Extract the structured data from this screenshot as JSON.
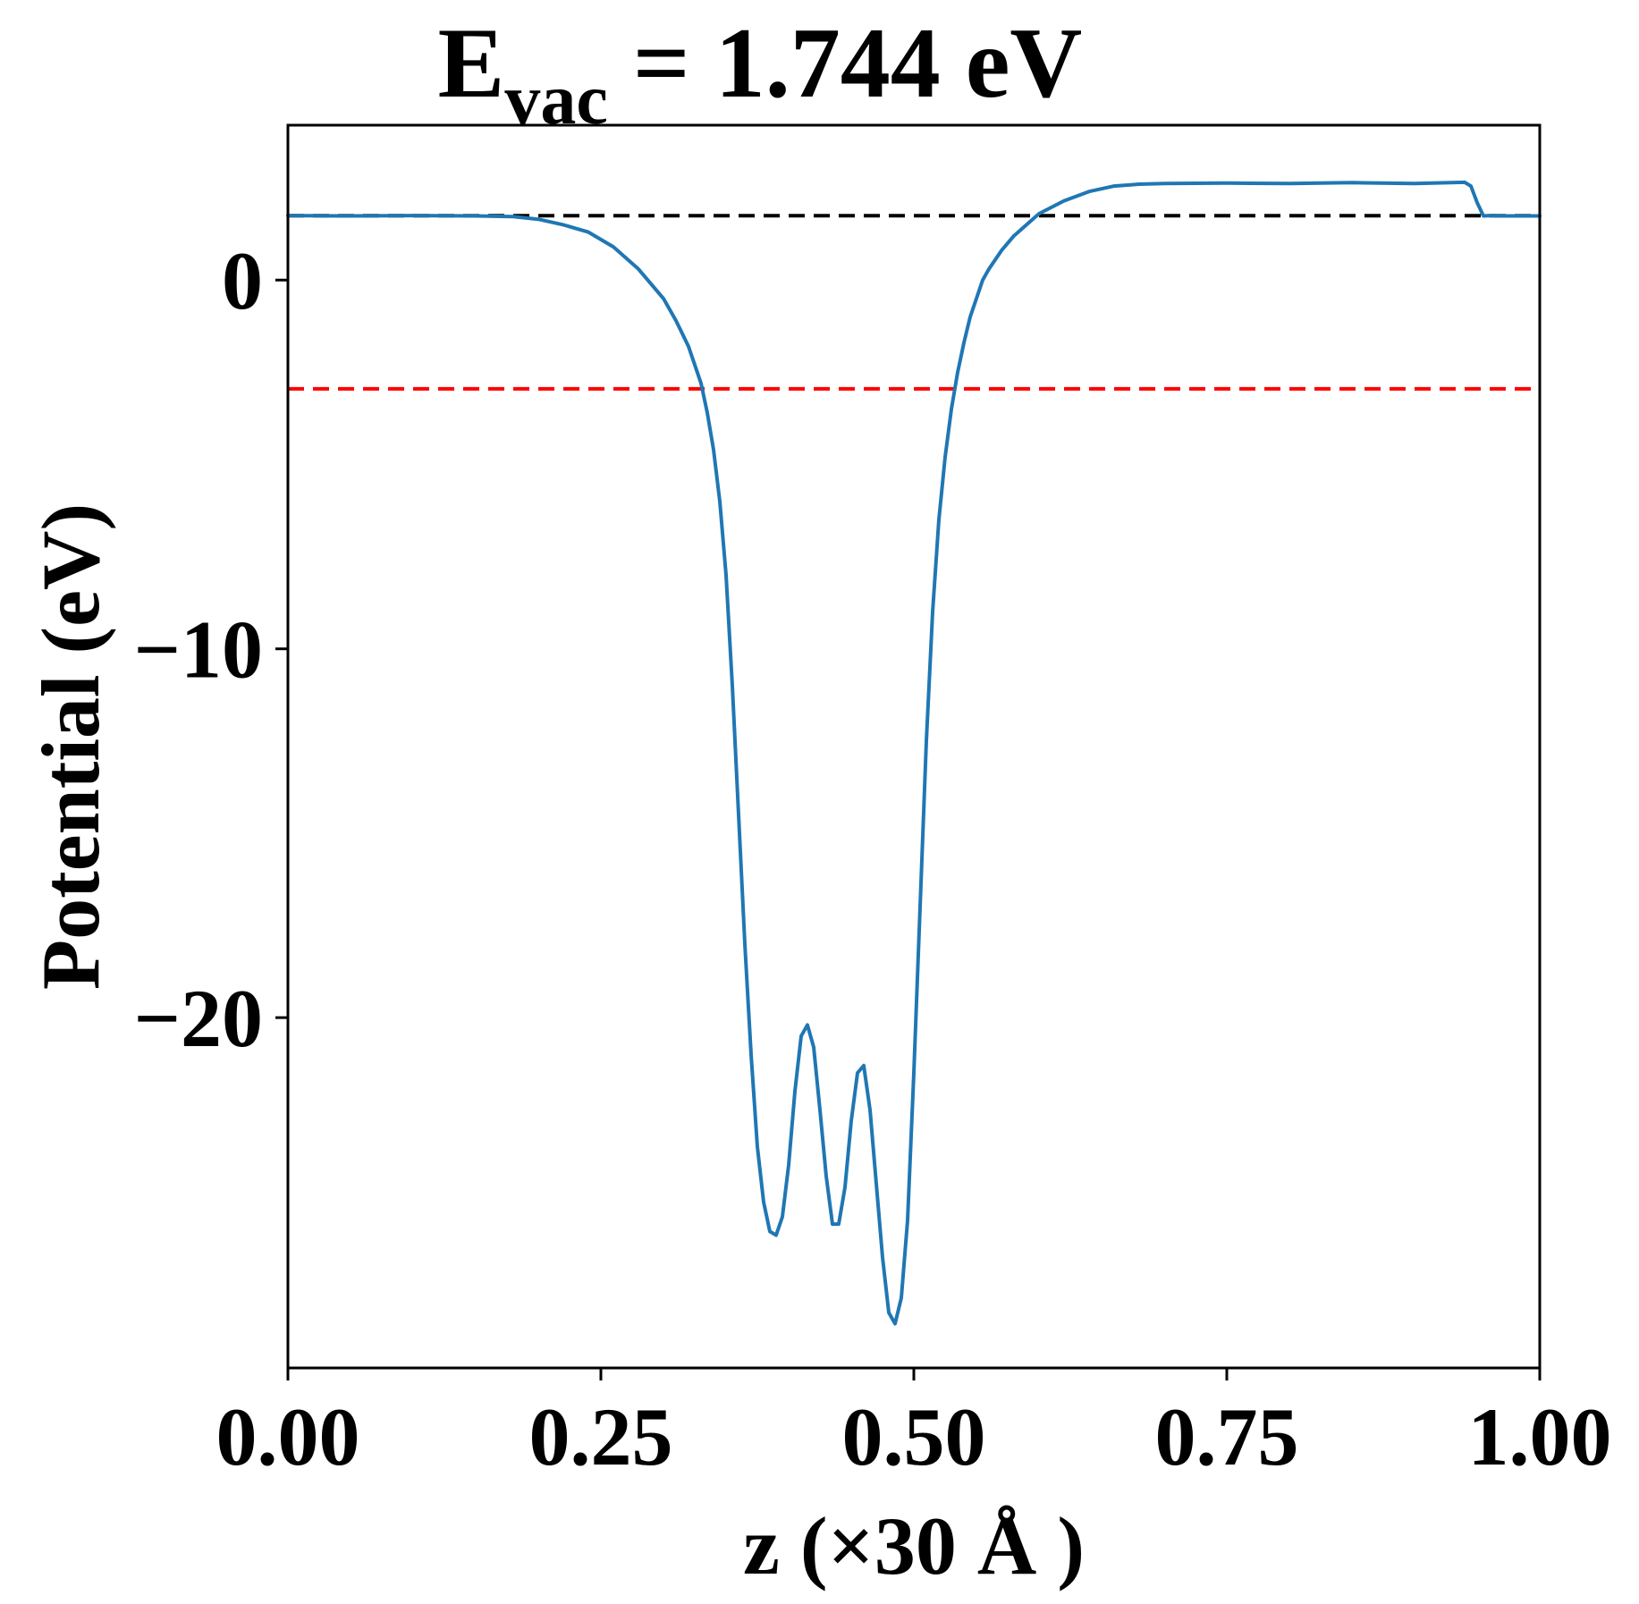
{
  "chart_data": {
    "type": "line",
    "title_main": "E",
    "title_sub": "vac",
    "title_rest": " = 1.744 eV",
    "xlabel": "z (×30 Å )",
    "ylabel": "Potential (eV)",
    "xlim": [
      0,
      1
    ],
    "ylim": [
      -29.5,
      4.2
    ],
    "xticks": [
      0,
      0.25,
      0.5,
      0.75,
      1.0
    ],
    "xtick_labels": [
      "0.00",
      "0.25",
      "0.50",
      "0.75",
      "1.00"
    ],
    "yticks": [
      0,
      -10,
      -20
    ],
    "ytick_labels": [
      "0",
      "−10",
      "−20"
    ],
    "grid": false,
    "hlines": [
      {
        "y": 1.744,
        "color": "#000000",
        "style": "dashed"
      },
      {
        "y": -2.95,
        "color": "#ff0000",
        "style": "dashed"
      }
    ],
    "series": [
      {
        "color": "#1f77b4",
        "x": [
          0.0,
          0.05,
          0.1,
          0.15,
          0.18,
          0.2,
          0.22,
          0.24,
          0.26,
          0.28,
          0.3,
          0.31,
          0.32,
          0.33,
          0.335,
          0.34,
          0.345,
          0.35,
          0.355,
          0.36,
          0.365,
          0.37,
          0.375,
          0.38,
          0.385,
          0.39,
          0.395,
          0.4,
          0.405,
          0.41,
          0.415,
          0.42,
          0.425,
          0.43,
          0.435,
          0.44,
          0.445,
          0.45,
          0.455,
          0.46,
          0.465,
          0.47,
          0.475,
          0.48,
          0.485,
          0.49,
          0.495,
          0.5,
          0.505,
          0.51,
          0.515,
          0.52,
          0.525,
          0.53,
          0.535,
          0.54,
          0.545,
          0.55,
          0.555,
          0.56,
          0.57,
          0.58,
          0.59,
          0.6,
          0.62,
          0.64,
          0.66,
          0.68,
          0.7,
          0.75,
          0.8,
          0.85,
          0.9,
          0.94,
          0.945,
          0.95,
          0.955,
          0.96,
          0.97,
          1.0
        ],
        "y": [
          1.75,
          1.74,
          1.75,
          1.74,
          1.72,
          1.65,
          1.5,
          1.3,
          0.9,
          0.3,
          -0.5,
          -1.1,
          -1.8,
          -2.8,
          -3.6,
          -4.6,
          -6.0,
          -8.0,
          -11.0,
          -14.5,
          -18.0,
          -21.0,
          -23.5,
          -25.0,
          -25.8,
          -25.9,
          -25.4,
          -24.0,
          -22.0,
          -20.5,
          -20.2,
          -20.8,
          -22.5,
          -24.3,
          -25.6,
          -25.6,
          -24.6,
          -22.8,
          -21.5,
          -21.3,
          -22.5,
          -24.5,
          -26.5,
          -28.0,
          -28.3,
          -27.6,
          -25.5,
          -21.5,
          -17.0,
          -12.5,
          -9.0,
          -6.5,
          -4.8,
          -3.5,
          -2.5,
          -1.7,
          -1.0,
          -0.5,
          0.0,
          0.3,
          0.8,
          1.2,
          1.5,
          1.8,
          2.15,
          2.4,
          2.55,
          2.6,
          2.62,
          2.63,
          2.62,
          2.64,
          2.62,
          2.65,
          2.55,
          2.1,
          1.74,
          1.75,
          1.74,
          1.74
        ]
      }
    ]
  }
}
